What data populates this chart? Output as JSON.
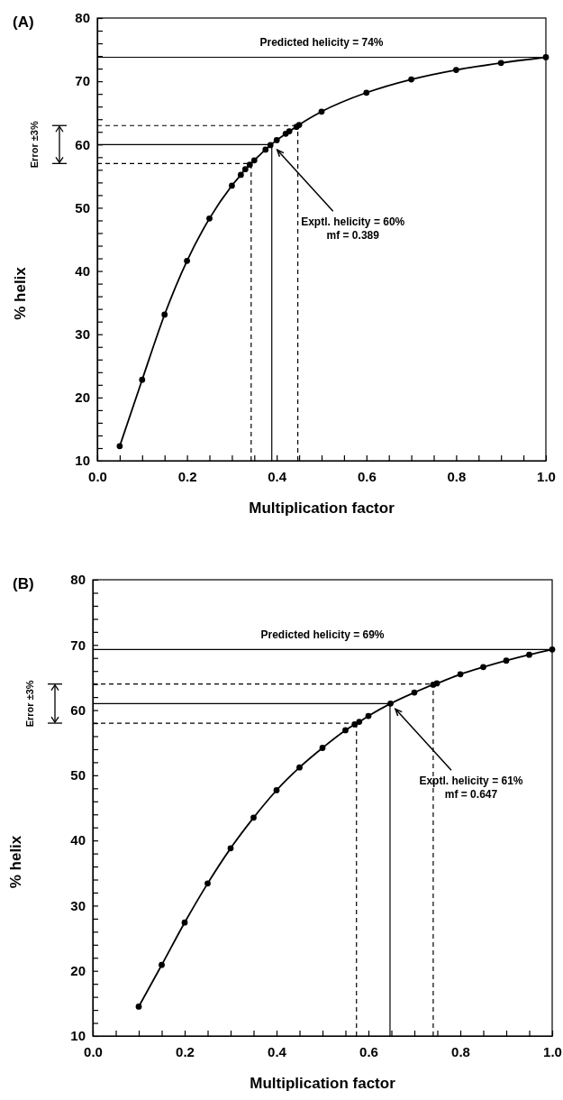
{
  "chart_data": [
    {
      "type": "line",
      "title": "(A)",
      "xlabel": "Multiplication factor",
      "ylabel": "% helix",
      "marker": "circle",
      "line_style": "solid",
      "grid": false,
      "series": [
        {
          "color": "#000000",
          "x": [
            0.05,
            0.1,
            0.15,
            0.2,
            0.25,
            0.3,
            0.32,
            0.33,
            0.34,
            0.35,
            0.375,
            0.386,
            0.4,
            0.42,
            0.428,
            0.444,
            0.45,
            0.5,
            0.6,
            0.7,
            0.8,
            0.9,
            1.0
          ],
          "values": [
            12.3,
            22.8,
            33.1,
            41.6,
            48.3,
            53.5,
            55.2,
            56.1,
            56.8,
            57.5,
            59.2,
            59.9,
            60.7,
            61.7,
            62.1,
            62.8,
            63.1,
            65.2,
            68.2,
            70.3,
            71.8,
            72.9,
            73.8
          ]
        }
      ],
      "xlim": [
        0,
        1
      ],
      "xticks": [
        {
          "value": 0,
          "label": "0.0"
        },
        {
          "value": 0.05,
          "label": null
        },
        {
          "value": 0.1,
          "label": null
        },
        {
          "value": 0.15,
          "label": null
        },
        {
          "value": 0.2,
          "label": "0.2"
        },
        {
          "value": 0.25,
          "label": null
        },
        {
          "value": 0.3,
          "label": null
        },
        {
          "value": 0.35,
          "label": null
        },
        {
          "value": 0.4,
          "label": "0.4"
        },
        {
          "value": 0.45,
          "label": null
        },
        {
          "value": 0.5,
          "label": null
        },
        {
          "value": 0.55,
          "label": null
        },
        {
          "value": 0.6,
          "label": "0.6"
        },
        {
          "value": 0.65,
          "label": null
        },
        {
          "value": 0.7,
          "label": null
        },
        {
          "value": 0.75,
          "label": null
        },
        {
          "value": 0.8,
          "label": "0.8"
        },
        {
          "value": 0.85,
          "label": null
        },
        {
          "value": 0.9,
          "label": null
        },
        {
          "value": 0.95,
          "label": null
        },
        {
          "value": 1,
          "label": "1.0"
        }
      ],
      "ylim": [
        10,
        80
      ],
      "yticks": [
        10,
        {
          "value": 12,
          "label": null
        },
        {
          "value": 14,
          "label": null
        },
        {
          "value": 16,
          "label": null
        },
        {
          "value": 18,
          "label": null
        },
        20,
        {
          "value": 22,
          "label": null
        },
        {
          "value": 24,
          "label": null
        },
        {
          "value": 26,
          "label": null
        },
        {
          "value": 28,
          "label": null
        },
        30,
        {
          "value": 32,
          "label": null
        },
        {
          "value": 34,
          "label": null
        },
        {
          "value": 36,
          "label": null
        },
        {
          "value": 38,
          "label": null
        },
        40,
        {
          "value": 42,
          "label": null
        },
        {
          "value": 44,
          "label": null
        },
        {
          "value": 46,
          "label": null
        },
        {
          "value": 48,
          "label": null
        },
        50,
        {
          "value": 52,
          "label": null
        },
        {
          "value": 54,
          "label": null
        },
        {
          "value": 56,
          "label": null
        },
        {
          "value": 58,
          "label": null
        },
        60,
        {
          "value": 62,
          "label": null
        },
        {
          "value": 64,
          "label": null
        },
        {
          "value": 66,
          "label": null
        },
        {
          "value": 68,
          "label": null
        },
        70,
        {
          "value": 72,
          "label": null
        },
        {
          "value": 74,
          "label": null
        },
        {
          "value": 76,
          "label": null
        },
        {
          "value": 78,
          "label": null
        },
        80
      ],
      "ref_lines": [
        {
          "axis": "y",
          "value": 73.8,
          "label": "Predicted helicity = 74%",
          "line_style": "solid"
        },
        {
          "axis": "y",
          "value": 60,
          "line_style": "solid"
        },
        {
          "axis": "y",
          "value": 63,
          "line_style": "dashed"
        },
        {
          "axis": "y",
          "value": 57,
          "line_style": "dashed"
        },
        {
          "axis": "x",
          "value": 0.389,
          "line_style": "solid"
        },
        {
          "axis": "x",
          "value": 0.343,
          "line_style": "dashed"
        },
        {
          "axis": "x",
          "value": 0.447,
          "line_style": "dashed"
        }
      ],
      "annotations": [
        {
          "text": "Exptl. helicity = 60%\nmf = 0.389",
          "x": 0.389,
          "y": 60
        },
        "Error ±3%"
      ]
    },
    {
      "type": "line",
      "title": "(B)",
      "xlabel": "Multiplication factor",
      "ylabel": "% helix",
      "marker": "circle",
      "line_style": "solid",
      "grid": false,
      "series": [
        {
          "color": "#000000",
          "x": [
            0.1,
            0.15,
            0.2,
            0.25,
            0.3,
            0.35,
            0.4,
            0.45,
            0.5,
            0.55,
            0.57,
            0.58,
            0.6,
            0.648,
            0.7,
            0.741,
            0.749,
            0.8,
            0.85,
            0.9,
            0.95,
            1.0
          ],
          "values": [
            14.5,
            20.9,
            27.4,
            33.4,
            38.8,
            43.5,
            47.7,
            51.2,
            54.2,
            56.9,
            57.8,
            58.2,
            59.1,
            61.0,
            62.7,
            63.9,
            64.1,
            65.5,
            66.6,
            67.6,
            68.5,
            69.3
          ]
        }
      ],
      "xlim": [
        0,
        1
      ],
      "xticks": [
        {
          "value": 0,
          "label": "0.0"
        },
        {
          "value": 0.05,
          "label": null
        },
        {
          "value": 0.1,
          "label": null
        },
        {
          "value": 0.15,
          "label": null
        },
        {
          "value": 0.2,
          "label": "0.2"
        },
        {
          "value": 0.25,
          "label": null
        },
        {
          "value": 0.3,
          "label": null
        },
        {
          "value": 0.35,
          "label": null
        },
        {
          "value": 0.4,
          "label": "0.4"
        },
        {
          "value": 0.45,
          "label": null
        },
        {
          "value": 0.5,
          "label": null
        },
        {
          "value": 0.55,
          "label": null
        },
        {
          "value": 0.6,
          "label": "0.6"
        },
        {
          "value": 0.65,
          "label": null
        },
        {
          "value": 0.7,
          "label": null
        },
        {
          "value": 0.75,
          "label": null
        },
        {
          "value": 0.8,
          "label": "0.8"
        },
        {
          "value": 0.85,
          "label": null
        },
        {
          "value": 0.9,
          "label": null
        },
        {
          "value": 0.95,
          "label": null
        },
        {
          "value": 1,
          "label": "1.0"
        }
      ],
      "ylim": [
        10,
        80
      ],
      "yticks": [
        10,
        {
          "value": 12,
          "label": null
        },
        {
          "value": 14,
          "label": null
        },
        {
          "value": 16,
          "label": null
        },
        {
          "value": 18,
          "label": null
        },
        20,
        {
          "value": 22,
          "label": null
        },
        {
          "value": 24,
          "label": null
        },
        {
          "value": 26,
          "label": null
        },
        {
          "value": 28,
          "label": null
        },
        30,
        {
          "value": 32,
          "label": null
        },
        {
          "value": 34,
          "label": null
        },
        {
          "value": 36,
          "label": null
        },
        {
          "value": 38,
          "label": null
        },
        40,
        {
          "value": 42,
          "label": null
        },
        {
          "value": 44,
          "label": null
        },
        {
          "value": 46,
          "label": null
        },
        {
          "value": 48,
          "label": null
        },
        50,
        {
          "value": 52,
          "label": null
        },
        {
          "value": 54,
          "label": null
        },
        {
          "value": 56,
          "label": null
        },
        {
          "value": 58,
          "label": null
        },
        60,
        {
          "value": 62,
          "label": null
        },
        {
          "value": 64,
          "label": null
        },
        {
          "value": 66,
          "label": null
        },
        {
          "value": 68,
          "label": null
        },
        70,
        {
          "value": 72,
          "label": null
        },
        {
          "value": 74,
          "label": null
        },
        {
          "value": 76,
          "label": null
        },
        {
          "value": 78,
          "label": null
        },
        80
      ],
      "ref_lines": [
        {
          "axis": "y",
          "value": 69.3,
          "label": "Predicted helicity = 69%",
          "line_style": "solid"
        },
        {
          "axis": "y",
          "value": 61,
          "line_style": "solid"
        },
        {
          "axis": "y",
          "value": 64,
          "line_style": "dashed"
        },
        {
          "axis": "y",
          "value": 58,
          "line_style": "dashed"
        },
        {
          "axis": "x",
          "value": 0.647,
          "line_style": "solid"
        },
        {
          "axis": "x",
          "value": 0.574,
          "line_style": "dashed"
        },
        {
          "axis": "x",
          "value": 0.741,
          "line_style": "dashed"
        }
      ],
      "annotations": [
        {
          "text": "Exptl. helicity = 61%\nmf = 0.647",
          "x": 0.647,
          "y": 61
        },
        "Error ±3%"
      ]
    }
  ]
}
